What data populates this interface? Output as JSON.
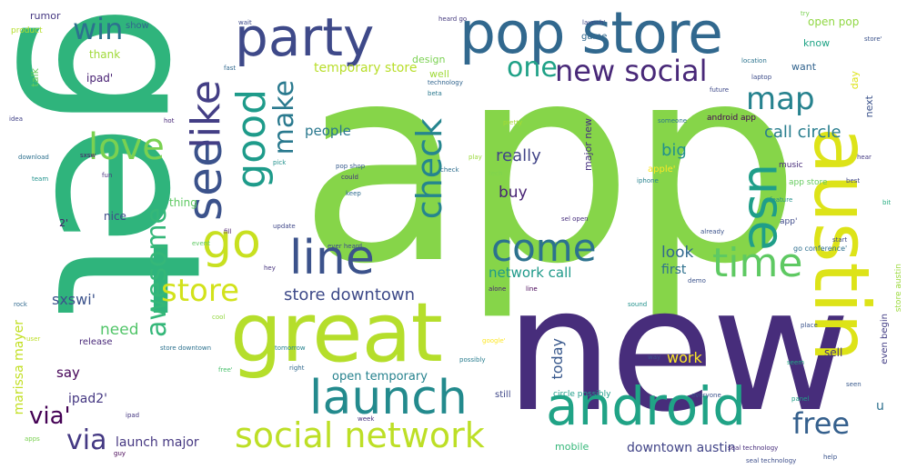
{
  "cloud": {
    "words": [
      {
        "text": "app",
        "color": "#86d549"
      },
      {
        "text": "get",
        "color": "#2fb47c"
      },
      {
        "text": "new",
        "color": "#472d7b"
      },
      {
        "text": "austin",
        "color": "#dde318"
      },
      {
        "text": "great",
        "color": "#b5de2b"
      },
      {
        "text": "pop store",
        "color": "#31688e"
      },
      {
        "text": "party",
        "color": "#3e4989"
      },
      {
        "text": "android",
        "color": "#20a386"
      },
      {
        "text": "launch",
        "color": "#238a8d"
      },
      {
        "text": "line",
        "color": "#3b528b"
      },
      {
        "text": "social network",
        "color": "#bddf26"
      },
      {
        "text": "use",
        "color": "#1f9e89"
      },
      {
        "text": "come",
        "color": "#2c728e"
      },
      {
        "text": "time",
        "color": "#5ec962"
      },
      {
        "text": "check",
        "color": "#25858e"
      },
      {
        "text": "good",
        "color": "#1e9b8a"
      },
      {
        "text": "see",
        "color": "#3b528b"
      },
      {
        "text": "like",
        "color": "#433e85"
      },
      {
        "text": "go",
        "color": "#c8e020"
      },
      {
        "text": "love",
        "color": "#7ad151"
      },
      {
        "text": "awesome",
        "color": "#35b779"
      },
      {
        "text": "store",
        "color": "#d2e21b"
      },
      {
        "text": "make",
        "color": "#29798e"
      },
      {
        "text": "new social",
        "color": "#482878"
      },
      {
        "text": "map",
        "color": "#26828e"
      },
      {
        "text": "one",
        "color": "#1fa187"
      },
      {
        "text": "win",
        "color": "#2c728e"
      },
      {
        "text": "free",
        "color": "#35608d"
      },
      {
        "text": "via",
        "color": "#443983"
      },
      {
        "text": "store downtown",
        "color": "#3e4a89"
      },
      {
        "text": "call circle",
        "color": "#287d8e"
      },
      {
        "text": "really",
        "color": "#414487"
      },
      {
        "text": "big",
        "color": "#21918c"
      },
      {
        "text": "buy",
        "color": "#482475"
      },
      {
        "text": "people",
        "color": "#2a788e"
      },
      {
        "text": "need",
        "color": "#52c569"
      },
      {
        "text": "today",
        "color": "#38588c"
      },
      {
        "text": "work",
        "color": "#fde725"
      },
      {
        "text": "look",
        "color": "#31688e"
      },
      {
        "text": "first",
        "color": "#2d708e"
      },
      {
        "text": "network call",
        "color": "#1f9a8a"
      },
      {
        "text": "sxswi'",
        "color": "#3b528b"
      },
      {
        "text": "say",
        "color": "#450457"
      },
      {
        "text": "temporary store",
        "color": "#b8de29"
      },
      {
        "text": "open temporary",
        "color": "#26828e"
      },
      {
        "text": "launch major",
        "color": "#453781"
      },
      {
        "text": "downtown austin",
        "color": "#414487"
      },
      {
        "text": "mobile",
        "color": "#35b779"
      },
      {
        "text": "marissa mayer",
        "color": "#c2df23"
      },
      {
        "text": "ipad2'",
        "color": "#453882"
      },
      {
        "text": "via'",
        "color": "#440154"
      },
      {
        "text": "even begin",
        "color": "#433e85"
      },
      {
        "text": "store austin",
        "color": "#9bd93c"
      },
      {
        "text": "sell",
        "color": "#46337e"
      },
      {
        "text": "u",
        "color": "#2d708e"
      },
      {
        "text": "open pop",
        "color": "#90d743"
      },
      {
        "text": "thank",
        "color": "#a0da39"
      },
      {
        "text": "ipad'",
        "color": "#482173"
      },
      {
        "text": "rumor",
        "color": "#453781"
      },
      {
        "text": "talk",
        "color": "#6ccd5a"
      },
      {
        "text": "design",
        "color": "#7ad151"
      },
      {
        "text": "well",
        "color": "#a0da39"
      },
      {
        "text": "know",
        "color": "#20a486"
      },
      {
        "text": "want",
        "color": "#32648e"
      },
      {
        "text": "day",
        "color": "#dde318"
      },
      {
        "text": "next",
        "color": "#3b528b"
      },
      {
        "text": "major new",
        "color": "#46307e"
      },
      {
        "text": "android app",
        "color": "#440154"
      },
      {
        "text": "apple'",
        "color": "#fde725"
      },
      {
        "text": "app store",
        "color": "#65cb5e"
      },
      {
        "text": "app'",
        "color": "#3e4a89"
      },
      {
        "text": "go conference'",
        "color": "#2e6f8e"
      },
      {
        "text": "thing",
        "color": "#5ec962"
      },
      {
        "text": "nice",
        "color": "#3e4989"
      },
      {
        "text": "2'",
        "color": "#481769"
      },
      {
        "text": "game",
        "color": "#31688e"
      },
      {
        "text": "show",
        "color": "#32648e"
      },
      {
        "text": "circle possibly",
        "color": "#1f9e89"
      },
      {
        "text": "release",
        "color": "#482878"
      },
      {
        "text": "still",
        "color": "#3f4788"
      },
      {
        "text": "product",
        "color": "#b5de2b"
      },
      {
        "text": "music",
        "color": "#472c7a"
      },
      {
        "text": "place",
        "color": "#3a538b"
      },
      {
        "text": "everyone",
        "color": "#3b528b"
      },
      {
        "text": "panel",
        "color": "#1f9f88"
      },
      {
        "text": "feature",
        "color": "#21918c"
      },
      {
        "text": "iphone",
        "color": "#26828e"
      },
      {
        "text": "pretty",
        "color": "#a8db34"
      },
      {
        "text": "way",
        "color": "#3b528b"
      },
      {
        "text": "start",
        "color": "#3f4889"
      },
      {
        "text": "launch'",
        "color": "#3e4989"
      },
      {
        "text": "store'",
        "color": "#3b528b"
      },
      {
        "text": "event",
        "color": "#5ec962"
      },
      {
        "text": "sxsw",
        "color": "#481769"
      },
      {
        "text": "fun",
        "color": "#46327e"
      },
      {
        "text": "heard go",
        "color": "#44397e"
      },
      {
        "text": "technology",
        "color": "#32658e"
      },
      {
        "text": "someone",
        "color": "#2a768e"
      },
      {
        "text": "location",
        "color": "#2c738e"
      },
      {
        "text": "seal technology",
        "color": "#3d4e8a"
      },
      {
        "text": "pop shop",
        "color": "#375b8d"
      },
      {
        "text": "ever heard",
        "color": "#3e4c8a"
      },
      {
        "text": "google'",
        "color": "#fde725"
      },
      {
        "text": "update",
        "color": "#3f4788"
      },
      {
        "text": "check",
        "color": "#2e6e8e"
      },
      {
        "text": "could",
        "color": "#46307e"
      },
      {
        "text": "play",
        "color": "#9bd93c"
      },
      {
        "text": "tech",
        "color": "#7fd34e"
      },
      {
        "text": "laptop",
        "color": "#3d4d8a"
      },
      {
        "text": "sel open",
        "color": "#472f7d"
      },
      {
        "text": "demo",
        "color": "#3b528b"
      },
      {
        "text": "rock",
        "color": "#30698e"
      },
      {
        "text": "pick",
        "color": "#21918c"
      },
      {
        "text": "future",
        "color": "#3e4989"
      },
      {
        "text": "seem",
        "color": "#22a884"
      },
      {
        "text": "keep",
        "color": "#2f6b8e"
      },
      {
        "text": "hey",
        "color": "#46337e"
      },
      {
        "text": "fill",
        "color": "#481a6c"
      },
      {
        "text": "already",
        "color": "#3b528b"
      },
      {
        "text": "best",
        "color": "#404688"
      },
      {
        "text": "user",
        "color": "#bddf26"
      },
      {
        "text": "apps",
        "color": "#7ad151"
      },
      {
        "text": "ipad",
        "color": "#453781"
      },
      {
        "text": "alone",
        "color": "#482071"
      },
      {
        "text": "right",
        "color": "#31688e"
      },
      {
        "text": "tomorrow",
        "color": "#25838e"
      },
      {
        "text": "possibly",
        "color": "#287c8e"
      },
      {
        "text": "line",
        "color": "#440154"
      },
      {
        "text": "download",
        "color": "#2d708e"
      },
      {
        "text": "team",
        "color": "#20928c"
      },
      {
        "text": "hot",
        "color": "#482878"
      },
      {
        "text": "cool",
        "color": "#93d741"
      },
      {
        "text": "store downtown",
        "color": "#2c718e"
      },
      {
        "text": "wait",
        "color": "#3e4989"
      },
      {
        "text": "seal technology",
        "color": "#472d7b"
      },
      {
        "text": "fast",
        "color": "#31688e"
      },
      {
        "text": "help",
        "color": "#3a548c"
      },
      {
        "text": "bit",
        "color": "#27ad81"
      },
      {
        "text": "sound",
        "color": "#21918c"
      },
      {
        "text": "hear",
        "color": "#443a83"
      },
      {
        "text": "try",
        "color": "#7ad151"
      },
      {
        "text": "guy",
        "color": "#440154"
      },
      {
        "text": "idea",
        "color": "#414287"
      },
      {
        "text": "seen",
        "color": "#38598c"
      },
      {
        "text": "free'",
        "color": "#4ac16d"
      },
      {
        "text": "week",
        "color": "#46327e"
      },
      {
        "text": "beta",
        "color": "#2a788e"
      }
    ]
  }
}
